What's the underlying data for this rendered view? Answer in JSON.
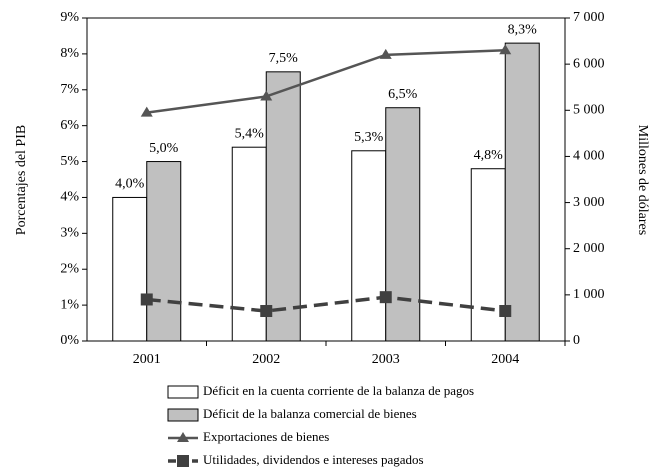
{
  "chart_data": {
    "type": "bar",
    "categories": [
      "2001",
      "2002",
      "2003",
      "2004"
    ],
    "ylabel": "Porcentajes del PIB",
    "y2label": "Millones de dólares",
    "ylim": [
      0,
      9
    ],
    "yticks": [
      {
        "value": 0,
        "label": "0%"
      },
      {
        "value": 1,
        "label": "1%"
      },
      {
        "value": 2,
        "label": "2%"
      },
      {
        "value": 3,
        "label": "3%"
      },
      {
        "value": 4,
        "label": "4%"
      },
      {
        "value": 5,
        "label": "5%"
      },
      {
        "value": 6,
        "label": "6%"
      },
      {
        "value": 7,
        "label": "7%"
      },
      {
        "value": 8,
        "label": "8%"
      },
      {
        "value": 9,
        "label": "9%"
      }
    ],
    "y2lim": [
      0,
      7000
    ],
    "y2ticks": [
      0,
      {
        "value": 1000,
        "label": "1 000"
      },
      {
        "value": 2000,
        "label": "2 000"
      },
      {
        "value": 3000,
        "label": "3 000"
      },
      {
        "value": 4000,
        "label": "4 000"
      },
      {
        "value": 5000,
        "label": "5 000"
      },
      {
        "value": 6000,
        "label": "6 000"
      },
      {
        "value": 7000,
        "label": "7 000"
      }
    ],
    "grid": false,
    "series": [
      {
        "name": "Déficit en la cuenta corriente de la balanza de pagos",
        "type": "bar",
        "color": "#ffffff",
        "values": [
          4.0,
          5.4,
          5.3,
          4.8
        ],
        "value_labels": [
          "4,0%",
          "5,4%",
          "5,3%",
          "4,8%"
        ]
      },
      {
        "name": "Déficit de la balanza comercial de bienes",
        "type": "bar",
        "color": "#c0c0c0",
        "values": [
          5.0,
          7.5,
          6.5,
          8.3
        ],
        "value_labels": [
          "5,0%",
          "7,5%",
          "6,5%",
          "8,3%"
        ]
      },
      {
        "name": "Exportaciones de bienes",
        "type": "line",
        "axis": "y2",
        "color": "#555555",
        "marker": "triangle",
        "linestyle": "solid",
        "values": [
          4950,
          5300,
          6200,
          6300
        ]
      },
      {
        "name": "Utilidades, dividendos e intereses pagados",
        "type": "line",
        "axis": "y2",
        "color": "#404040",
        "marker": "square",
        "linestyle": "dashed",
        "values": [
          900,
          650,
          950,
          650
        ]
      }
    ]
  }
}
